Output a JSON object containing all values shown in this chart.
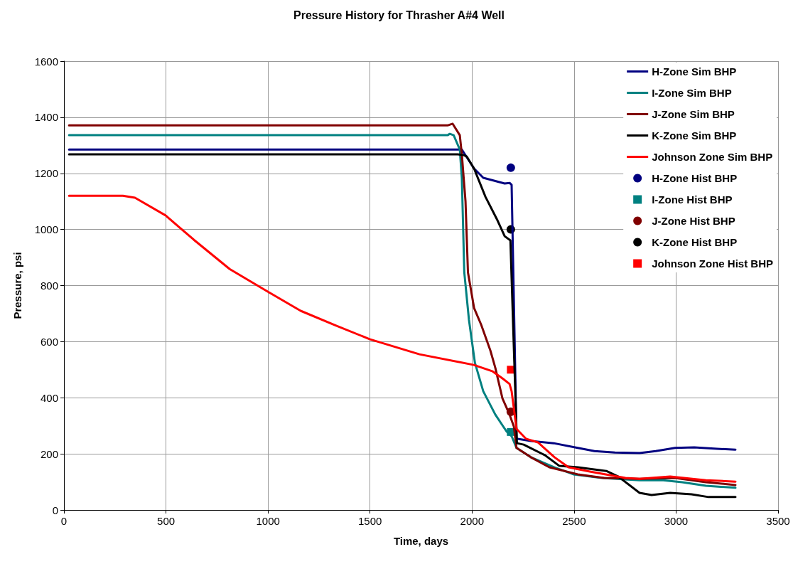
{
  "chart_data": {
    "type": "line",
    "title": "Pressure History for Thrasher A#4 Well",
    "xlabel": "Time, days",
    "ylabel": "Pressure, psi",
    "xlim": [
      0,
      3500
    ],
    "xticks": [
      0,
      500,
      1000,
      1500,
      2000,
      2500,
      3000,
      3500
    ],
    "ylim": [
      0,
      1600
    ],
    "yticks": [
      0,
      200,
      400,
      600,
      800,
      1000,
      1200,
      1400,
      1600
    ],
    "grid": true,
    "legend": "top right",
    "marker": "none",
    "line_style": "solid",
    "series": [
      {
        "name": "H-Zone Sim BHP",
        "color": "#000080",
        "x": [
          25,
          1930,
          1950,
          2010,
          2055,
          2160,
          2184,
          2194,
          2218,
          2288,
          2400,
          2518,
          2600,
          2700,
          2821,
          2900,
          2995,
          3089,
          3200,
          3291
        ],
        "values": [
          1285,
          1285,
          1285,
          1217,
          1184,
          1164,
          1166,
          1159,
          254,
          246,
          238,
          221,
          210,
          205,
          203,
          210,
          221,
          223,
          218,
          215
        ]
      },
      {
        "name": "I-Zone Sim BHP",
        "color": "#008080",
        "x": [
          25,
          1880,
          1891,
          1910,
          1940,
          1950,
          1962,
          1985,
          2014,
          2055,
          2114,
          2170,
          2194,
          2218,
          2288,
          2404,
          2497,
          2636,
          2821,
          2937,
          3030,
          3146,
          3291
        ],
        "values": [
          1336,
          1336,
          1341,
          1336,
          1285,
          1184,
          847,
          677,
          525,
          423,
          340,
          279,
          263,
          221,
          188,
          152,
          127,
          114,
          106,
          106,
          99,
          86,
          79
        ]
      },
      {
        "name": "J-Zone Sim BHP",
        "color": "#800000",
        "x": [
          25,
          1880,
          1905,
          1940,
          1950,
          1968,
          1980,
          2010,
          2045,
          2090,
          2114,
          2149,
          2184,
          2205,
          2218,
          2288,
          2379,
          2518,
          2647,
          2821,
          2995,
          3146,
          3291
        ],
        "values": [
          1371,
          1371,
          1377,
          1336,
          1268,
          1100,
          847,
          720,
          660,
          568,
          507,
          398,
          340,
          297,
          221,
          188,
          152,
          127,
          114,
          111,
          114,
          99,
          89
        ]
      },
      {
        "name": "K-Zone Sim BHP",
        "color": "#000000",
        "x": [
          25,
          1930,
          1960,
          1974,
          2010,
          2066,
          2125,
          2160,
          2188,
          2220,
          2253,
          2358,
          2428,
          2518,
          2658,
          2717,
          2821,
          2880,
          2971,
          3076,
          3159,
          3291
        ],
        "values": [
          1268,
          1268,
          1265,
          1260,
          1217,
          1116,
          1032,
          976,
          961,
          238,
          233,
          195,
          157,
          152,
          139,
          119,
          61,
          53,
          61,
          56,
          46,
          46
        ]
      },
      {
        "name": "Johnson Zone Sim BHP",
        "color": "#ff0000",
        "x": [
          25,
          289,
          348,
          498,
          637,
          812,
          1000,
          1160,
          1334,
          1498,
          1742,
          2009,
          2101,
          2149,
          2184,
          2194,
          2218,
          2264,
          2323,
          2404,
          2473,
          2577,
          2752,
          2821,
          2971,
          3146,
          3291
        ],
        "values": [
          1120,
          1120,
          1113,
          1050,
          963,
          859,
          778,
          710,
          657,
          609,
          555,
          517,
          494,
          469,
          449,
          423,
          289,
          254,
          241,
          188,
          152,
          137,
          114,
          111,
          119,
          106,
          101
        ]
      },
      {
        "name": "H-Zone Hist BHP",
        "type": "scatter",
        "marker": "circle",
        "color": "#000080",
        "x": [
          2190
        ],
        "values": [
          1220
        ]
      },
      {
        "name": "I-Zone Hist BHP",
        "type": "scatter",
        "marker": "square",
        "color": "#008080",
        "x": [
          2190
        ],
        "values": [
          278
        ]
      },
      {
        "name": "J-Zone Hist BHP",
        "type": "scatter",
        "marker": "circle",
        "color": "#800000",
        "x": [
          2190
        ],
        "values": [
          350
        ]
      },
      {
        "name": "K-Zone Hist BHP",
        "type": "scatter",
        "marker": "circle",
        "color": "#000000",
        "x": [
          2190
        ],
        "values": [
          1000
        ]
      },
      {
        "name": "Johnson Zone Hist BHP",
        "type": "scatter",
        "marker": "square",
        "color": "#ff0000",
        "x": [
          2190
        ],
        "values": [
          500
        ]
      }
    ]
  }
}
